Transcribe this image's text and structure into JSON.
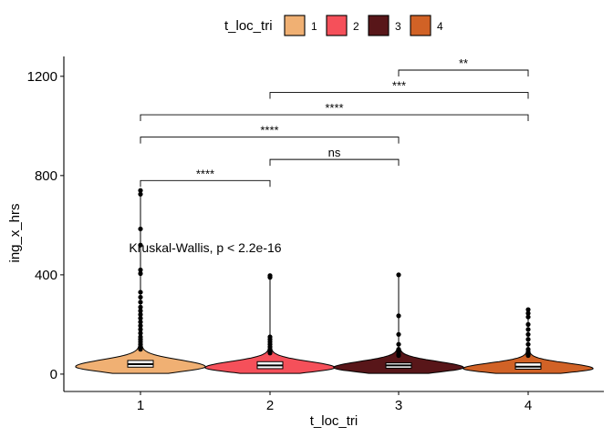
{
  "chart_data": {
    "type": "violin",
    "xlabel": "t_loc_tri",
    "ylabel": "ing_x_hrs",
    "ylim": [
      -70,
      1280
    ],
    "yticks": [
      0,
      400,
      800,
      1200
    ],
    "ytick_labels": [
      "0",
      "400",
      "800",
      "1200"
    ],
    "categories": [
      "1",
      "2",
      "3",
      "4"
    ],
    "legend": {
      "title": "t_loc_tri",
      "position": "top",
      "entries": [
        {
          "label": "1",
          "color": "#F0B073"
        },
        {
          "label": "2",
          "color": "#F5505A"
        },
        {
          "label": "3",
          "color": "#581619"
        },
        {
          "label": "4",
          "color": "#D16226"
        }
      ]
    },
    "groups": [
      {
        "category": "1",
        "color": "#F0B073",
        "median": 40,
        "q1": 28,
        "q3": 55,
        "min": 3,
        "whisker_max": 95,
        "outliers": [
          740,
          725,
          585,
          520,
          420,
          405,
          330,
          310,
          290,
          270,
          255,
          240,
          225,
          210,
          195,
          180,
          165,
          150,
          140,
          130,
          120,
          110,
          100
        ]
      },
      {
        "category": "2",
        "color": "#F5505A",
        "median": 35,
        "q1": 22,
        "q3": 50,
        "min": 3,
        "whisker_max": 80,
        "outliers": [
          397,
          390,
          150,
          140,
          130,
          120,
          110,
          100,
          90,
          85
        ]
      },
      {
        "category": "3",
        "color": "#581619",
        "median": 35,
        "q1": 24,
        "q3": 45,
        "min": 3,
        "whisker_max": 70,
        "outliers": [
          400,
          235,
          160,
          120,
          100,
          90,
          80,
          75
        ]
      },
      {
        "category": "4",
        "color": "#D16226",
        "median": 30,
        "q1": 20,
        "q3": 45,
        "min": 3,
        "whisker_max": 65,
        "outliers": [
          260,
          245,
          230,
          200,
          180,
          160,
          140,
          120,
          100,
          90,
          80,
          75
        ]
      }
    ],
    "comparisons": [
      {
        "from": "1",
        "to": "2",
        "y": 780,
        "label": "****"
      },
      {
        "from": "2",
        "to": "3",
        "y": 865,
        "label": "ns"
      },
      {
        "from": "1",
        "to": "3",
        "y": 955,
        "label": "****"
      },
      {
        "from": "1",
        "to": "4",
        "y": 1045,
        "label": "****"
      },
      {
        "from": "2",
        "to": "4",
        "y": 1135,
        "label": "***"
      },
      {
        "from": "3",
        "to": "4",
        "y": 1225,
        "label": "**"
      }
    ],
    "annotation": {
      "text": "Kruskal-Wallis, p < 2.2e-16",
      "x": 1.5,
      "y": 510
    }
  }
}
